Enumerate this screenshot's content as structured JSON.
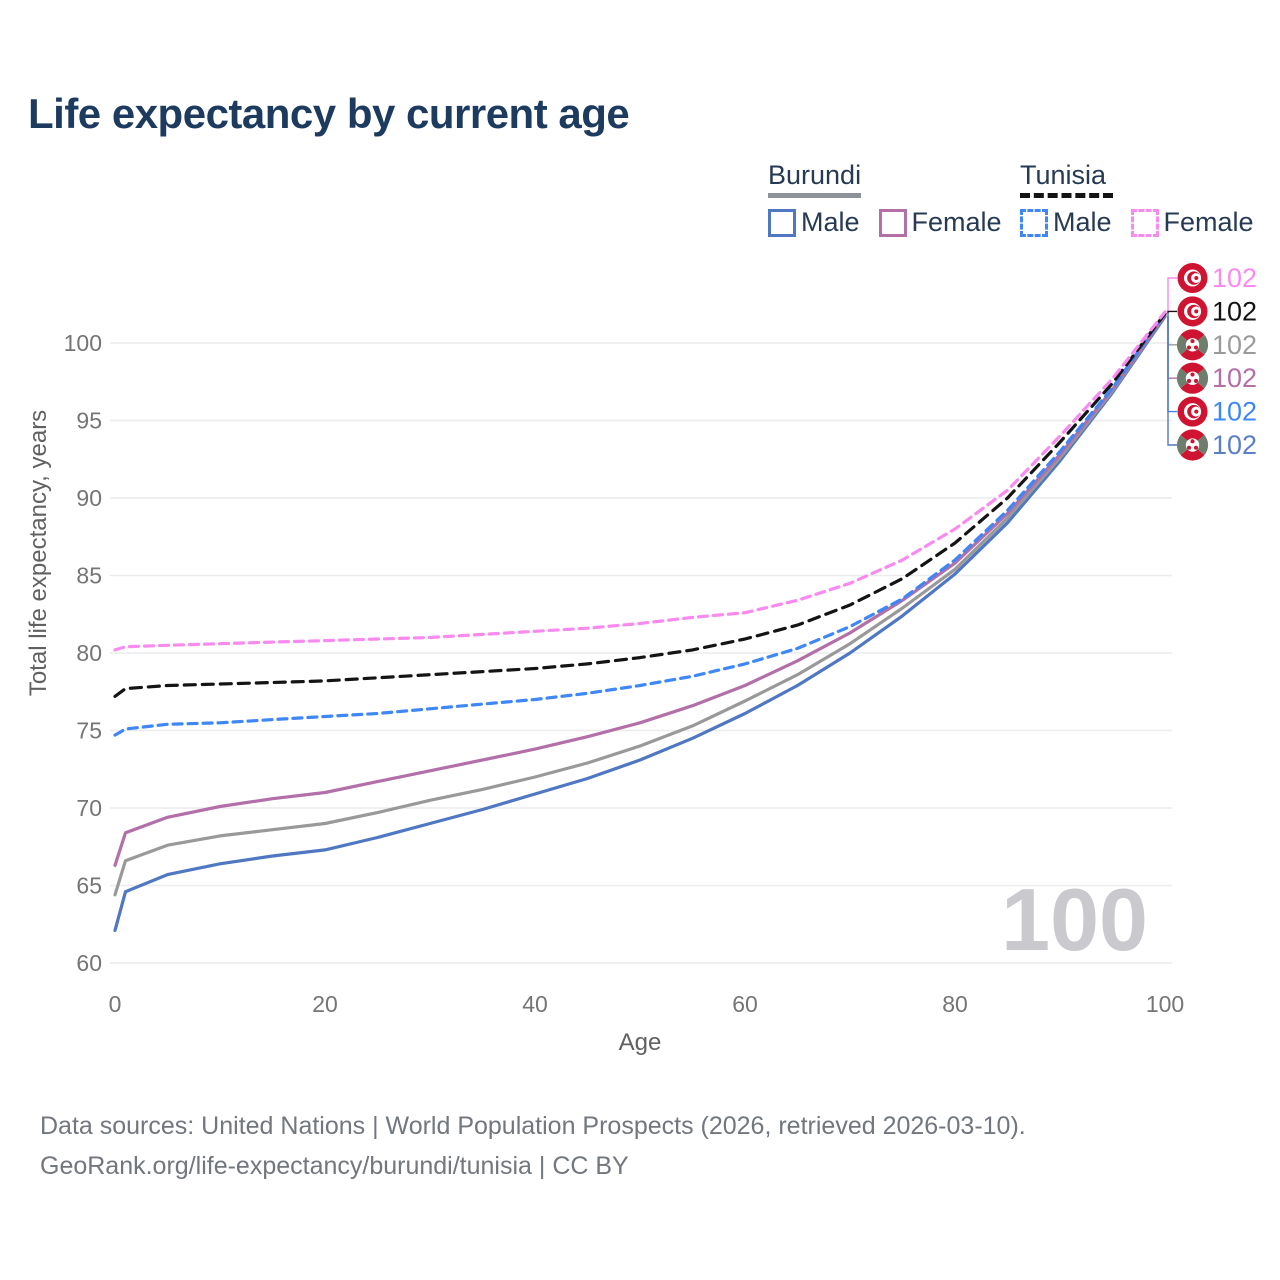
{
  "title": "Life expectancy by current age",
  "legend": {
    "groups": [
      {
        "label": "Burundi",
        "line_style": "solid",
        "underline_color": "#8d9298",
        "items": [
          {
            "label": "Male",
            "color": "#4f77c2",
            "dashed": false
          },
          {
            "label": "Female",
            "color": "#b26fa8",
            "dashed": false
          }
        ]
      },
      {
        "label": "Tunisia",
        "line_style": "dashed",
        "underline_color": "#141414",
        "items": [
          {
            "label": "Male",
            "color": "#3f87f5",
            "dashed": true
          },
          {
            "label": "Female",
            "color": "#f98af0",
            "dashed": true
          }
        ]
      }
    ]
  },
  "chart_data": {
    "type": "line",
    "title": "Life expectancy by current age",
    "xlabel": "Age",
    "ylabel": "Total life expectancy, years",
    "xlim": [
      0,
      100
    ],
    "ylim": [
      60,
      103
    ],
    "xticks": [
      0,
      20,
      40,
      60,
      80,
      100
    ],
    "yticks": [
      60,
      65,
      70,
      75,
      80,
      85,
      90,
      95,
      100
    ],
    "grid": "horizontal-only",
    "watermark": "100",
    "x": [
      0,
      1,
      5,
      10,
      15,
      20,
      25,
      30,
      35,
      40,
      45,
      50,
      55,
      60,
      65,
      70,
      75,
      80,
      85,
      90,
      95,
      100
    ],
    "series": [
      {
        "id": "burundi_male",
        "name": "Burundi Male",
        "country": "Burundi",
        "sex": "Male",
        "color": "#4f77c2",
        "dash": null,
        "values": [
          62.1,
          64.6,
          65.7,
          66.4,
          66.9,
          67.3,
          68.1,
          69.0,
          69.9,
          70.9,
          71.9,
          73.1,
          74.5,
          76.1,
          77.9,
          80.0,
          82.4,
          85.1,
          88.4,
          92.4,
          96.8,
          101.7
        ]
      },
      {
        "id": "burundi_both",
        "name": "Burundi",
        "country": "Burundi",
        "sex": "Both",
        "color": "#999999",
        "dash": null,
        "values": [
          64.4,
          66.6,
          67.6,
          68.2,
          68.6,
          69.0,
          69.7,
          70.5,
          71.2,
          72.0,
          72.9,
          74.0,
          75.3,
          76.9,
          78.6,
          80.6,
          82.9,
          85.4,
          88.7,
          92.6,
          96.9,
          101.8
        ]
      },
      {
        "id": "burundi_female",
        "name": "Burundi Female",
        "country": "Burundi",
        "sex": "Female",
        "color": "#b26fa8",
        "dash": null,
        "values": [
          66.3,
          68.4,
          69.4,
          70.1,
          70.6,
          71.0,
          71.7,
          72.4,
          73.1,
          73.8,
          74.6,
          75.5,
          76.6,
          77.9,
          79.5,
          81.3,
          83.4,
          85.8,
          89.0,
          92.8,
          97.0,
          101.8
        ]
      },
      {
        "id": "tunisia_male",
        "name": "Tunisia Male",
        "country": "Tunisia",
        "sex": "Male",
        "color": "#3f87f5",
        "dash": "9 6",
        "values": [
          74.7,
          75.1,
          75.4,
          75.5,
          75.7,
          75.9,
          76.1,
          76.4,
          76.7,
          77.0,
          77.4,
          77.9,
          78.5,
          79.3,
          80.3,
          81.7,
          83.5,
          86.0,
          89.2,
          93.0,
          97.1,
          101.9
        ]
      },
      {
        "id": "tunisia_both",
        "name": "Tunisia",
        "country": "Tunisia",
        "sex": "Both",
        "color": "#141414",
        "dash": "11 7",
        "values": [
          77.2,
          77.7,
          77.9,
          78.0,
          78.1,
          78.2,
          78.4,
          78.6,
          78.8,
          79.0,
          79.3,
          79.7,
          80.2,
          80.9,
          81.8,
          83.1,
          84.8,
          87.1,
          90.0,
          93.6,
          97.4,
          101.9
        ]
      },
      {
        "id": "tunisia_female",
        "name": "Tunisia Female",
        "country": "Tunisia",
        "sex": "Female",
        "color": "#f98af0",
        "dash": "9 6",
        "values": [
          80.2,
          80.4,
          80.5,
          80.6,
          80.7,
          80.8,
          80.9,
          81.0,
          81.2,
          81.4,
          81.6,
          81.9,
          82.3,
          82.6,
          83.4,
          84.5,
          86.0,
          88.0,
          90.5,
          94.0,
          97.7,
          102.0
        ]
      }
    ],
    "end_labels": [
      {
        "series": "tunisia_female",
        "text": "102",
        "color": "#f98af0",
        "flag": "tunisia"
      },
      {
        "series": "tunisia_both",
        "text": "102",
        "color": "#141414",
        "flag": "tunisia"
      },
      {
        "series": "burundi_both",
        "text": "102",
        "color": "#9b9b9b",
        "flag": "burundi"
      },
      {
        "series": "burundi_female",
        "text": "102",
        "color": "#b26fa8",
        "flag": "burundi"
      },
      {
        "series": "tunisia_male",
        "text": "102",
        "color": "#3f87f5",
        "flag": "tunisia"
      },
      {
        "series": "burundi_male",
        "text": "102",
        "color": "#5b7fc7",
        "flag": "burundi"
      }
    ]
  },
  "footer": {
    "line1": "Data sources: United Nations | World Population Prospects (2026, retrieved 2026-03-10).",
    "line2": "GeoRank.org/life-expectancy/burundi/tunisia | CC BY"
  }
}
